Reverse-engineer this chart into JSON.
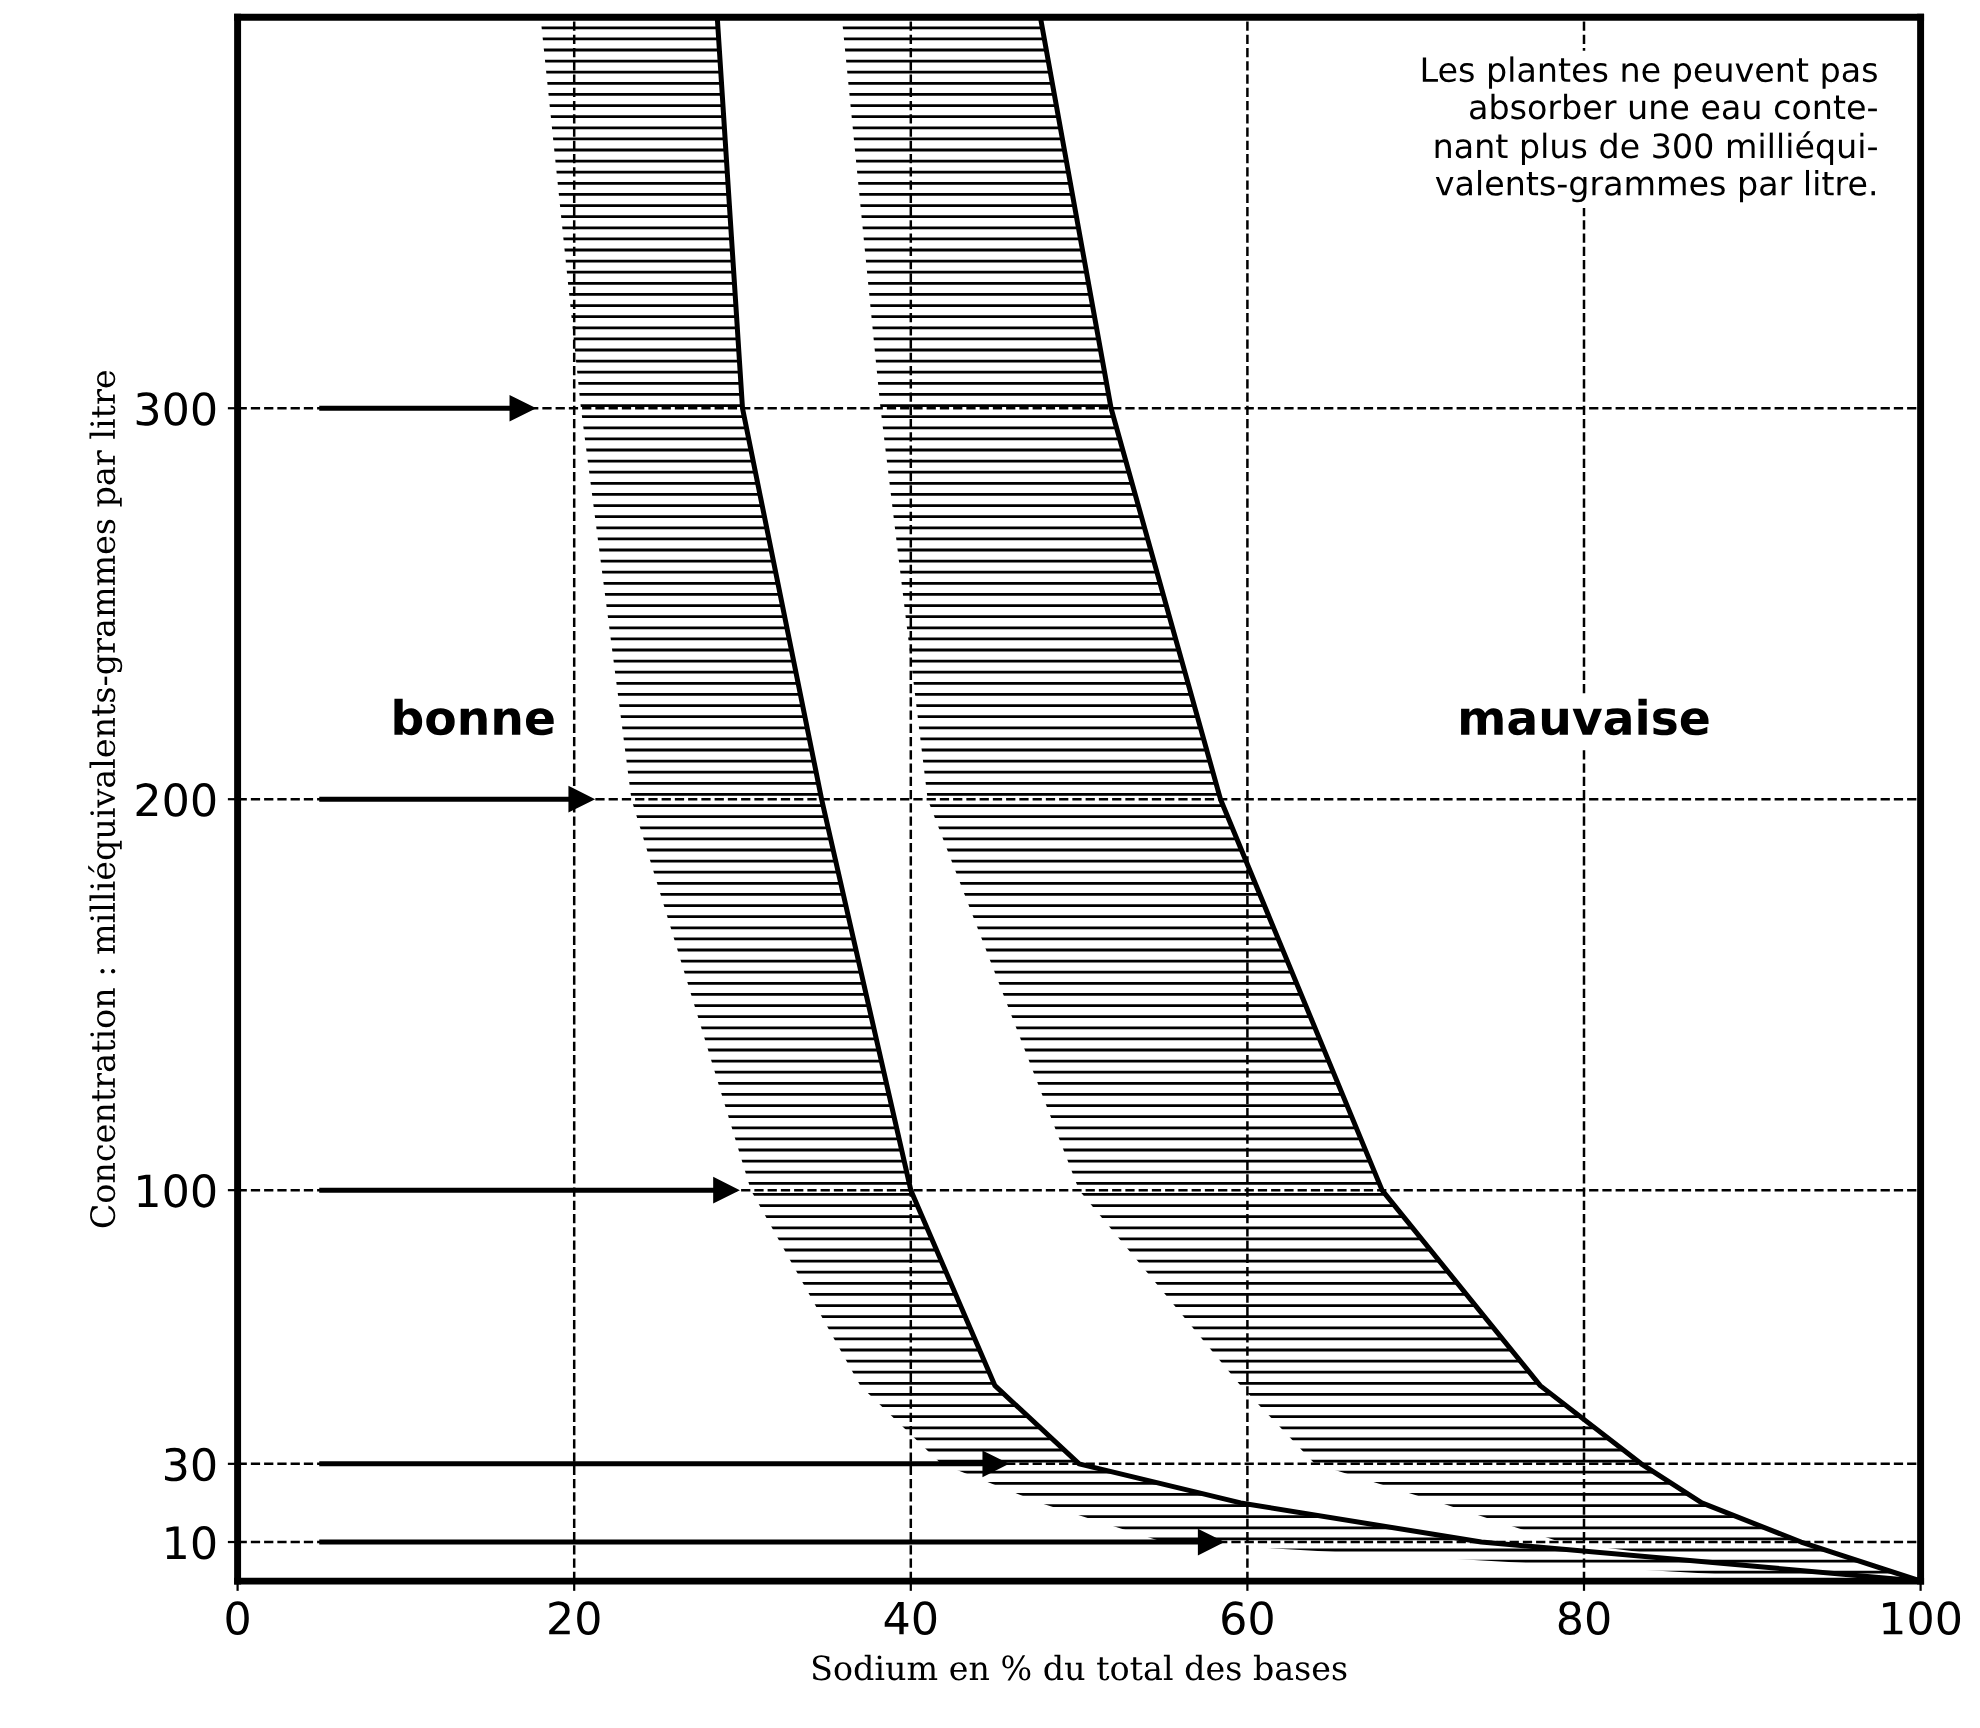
{
  "chart_data": {
    "type": "line",
    "orientation": "horizontal",
    "xlabel": "Sodium en % du total des bases",
    "ylabel": "Concentration : milliéquivalents-grammes par litre",
    "xlim": [
      0,
      100
    ],
    "xticks": [
      0,
      20,
      40,
      60,
      80,
      100
    ],
    "ylim": [
      0,
      400
    ],
    "yticks": [
      10,
      30,
      100,
      200,
      300
    ],
    "grid": true,
    "line_style": "solid",
    "series": [
      {
        "color": "#000000",
        "x": [
          400,
          300,
          200,
          100,
          50,
          30,
          20,
          10,
          0
        ],
        "values": [
          28.5,
          30,
          34.7,
          40,
          45,
          50,
          59.6,
          73.9,
          100
        ],
        "lower": [
          18,
          20.4,
          23.4,
          30.5,
          37,
          41.8,
          47.7,
          55,
          95
        ],
        "upper": [
          28.5,
          30,
          34.7,
          40,
          45,
          50,
          59.6,
          73.9,
          100
        ]
      },
      {
        "color": "#000000",
        "x": [
          400,
          300,
          200,
          100,
          50,
          30,
          20,
          10,
          0
        ],
        "values": [
          47.7,
          51.9,
          58.4,
          68,
          77.4,
          83.4,
          87,
          92.9,
          100
        ],
        "lower": [
          35.9,
          38.2,
          41,
          50,
          59.6,
          64,
          71.5,
          78.6,
          97
        ],
        "upper": [
          47.7,
          51.9,
          58.4,
          68,
          77.4,
          83.4,
          87,
          92.9,
          100
        ]
      },
      {
        "color": "#000000",
        "marker": "triangle",
        "x": [
          300,
          300
        ],
        "values": [
          5,
          16.9
        ]
      },
      {
        "color": "#000000",
        "marker": "triangle",
        "x": [
          200,
          200
        ],
        "values": [
          5,
          20.4
        ]
      },
      {
        "color": "#000000",
        "marker": "triangle",
        "x": [
          100,
          100
        ],
        "values": [
          5,
          29
        ]
      },
      {
        "color": "#000000",
        "marker": "triangle",
        "x": [
          30,
          30
        ],
        "values": [
          5,
          45
        ]
      },
      {
        "color": "#000000",
        "marker": "triangle",
        "x": [
          10,
          10
        ],
        "values": [
          5,
          57.8
        ]
      }
    ],
    "annotations": [
      "bonne",
      "mauvaise",
      "Les plantes ne peuvent pas\nabsorber une eau conte-\nnant plus de 300 milliéqui-\nvalents-grammes par litre."
    ]
  }
}
